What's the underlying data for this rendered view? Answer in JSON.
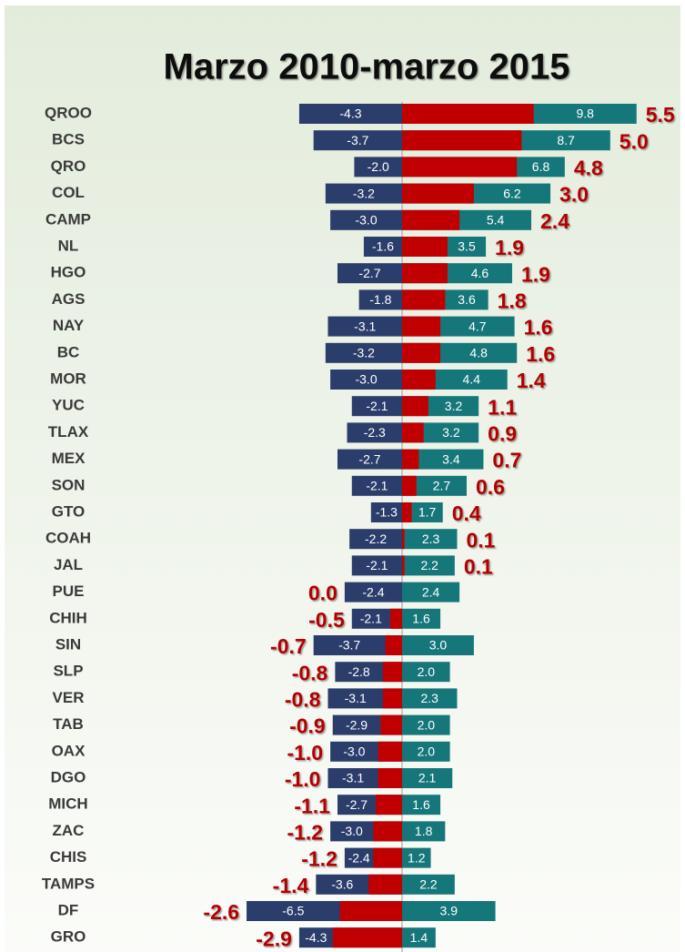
{
  "chart_data": {
    "type": "diverging-bar",
    "title": "Marzo 2010-marzo 2015",
    "categories": [
      "QROO",
      "BCS",
      "QRO",
      "COL",
      "CAMP",
      "NL",
      "HGO",
      "AGS",
      "NAY",
      "BC",
      "MOR",
      "YUC",
      "TLAX",
      "MEX",
      "SON",
      "GTO",
      "COAH",
      "JAL",
      "PUE",
      "CHIH",
      "SIN",
      "SLP",
      "VER",
      "TAB",
      "OAX",
      "DGO",
      "MICH",
      "ZAC",
      "CHIS",
      "TAMPS",
      "DF",
      "GRO"
    ],
    "series": [
      {
        "color": "#2b3d6b",
        "values": [
          -4.3,
          -3.7,
          -2.0,
          -3.2,
          -3.0,
          -1.6,
          -2.7,
          -1.8,
          -3.1,
          -3.2,
          -3.0,
          -2.1,
          -2.3,
          -2.7,
          -2.1,
          -1.3,
          -2.2,
          -2.1,
          -2.4,
          -2.1,
          -3.7,
          -2.8,
          -3.1,
          -2.9,
          -3.0,
          -3.1,
          -2.7,
          -3.0,
          -2.4,
          -3.6,
          -6.5,
          -4.3
        ],
        "value_labels": [
          "-4.3",
          "-3.7",
          "-2.0",
          "-3.2",
          "-3.0",
          "-1.6",
          "-2.7",
          "-1.8",
          "-3.1",
          "-3.2",
          "-3.0",
          "-2.1",
          "-2.3",
          "-2.7",
          "-2.1",
          "-1.3",
          "-2.2",
          "-2.1",
          "-2.4",
          "-2.1",
          "-3.7",
          "-2.8",
          "-3.1",
          "-2.9",
          "-3.0",
          "-3.1",
          "-2.7",
          "-3.0",
          "-2.4",
          "-3.6",
          "-6.5",
          "-4.3"
        ]
      },
      {
        "color": "#16777b",
        "values": [
          9.8,
          8.7,
          6.8,
          6.2,
          5.4,
          3.5,
          4.6,
          3.6,
          4.7,
          4.8,
          4.4,
          3.2,
          3.2,
          3.4,
          2.7,
          1.7,
          2.3,
          2.2,
          2.4,
          1.6,
          3.0,
          2.0,
          2.3,
          2.0,
          2.0,
          2.1,
          1.6,
          1.8,
          1.2,
          2.2,
          3.9,
          1.4
        ],
        "value_labels": [
          "9.8",
          "8.7",
          "6.8",
          "6.2",
          "5.4",
          "3.5",
          "4.6",
          "3.6",
          "4.7",
          "4.8",
          "4.4",
          "3.2",
          "3.2",
          "3.4",
          "2.7",
          "1.7",
          "2.3",
          "2.2",
          "2.4",
          "1.6",
          "3.0",
          "2.0",
          "2.3",
          "2.0",
          "2.0",
          "2.1",
          "1.6",
          "1.8",
          "1.2",
          "2.2",
          "3.9",
          "1.4"
        ]
      },
      {
        "color": "#c00000",
        "values": [
          5.5,
          5.0,
          4.8,
          3.0,
          2.4,
          1.9,
          1.9,
          1.8,
          1.6,
          1.6,
          1.4,
          1.1,
          0.9,
          0.7,
          0.6,
          0.4,
          0.1,
          0.1,
          0.0,
          -0.5,
          -0.7,
          -0.8,
          -0.8,
          -0.9,
          -1.0,
          -1.0,
          -1.1,
          -1.2,
          -1.2,
          -1.4,
          -2.6,
          -2.9
        ],
        "value_labels": [
          "5.5",
          "5.0",
          "4.8",
          "3.0",
          "2.4",
          "1.9",
          "1.9",
          "1.8",
          "1.6",
          "1.6",
          "1.4",
          "1.1",
          "0.9",
          "0.7",
          "0.6",
          "0.4",
          "0.1",
          "0.1",
          "0.0",
          "-0.5",
          "-0.7",
          "-0.8",
          "-0.8",
          "-0.9",
          "-1.0",
          "-1.0",
          "-1.1",
          "-1.2",
          "-1.2",
          "-1.4",
          "-2.6",
          "-2.9"
        ]
      }
    ]
  }
}
